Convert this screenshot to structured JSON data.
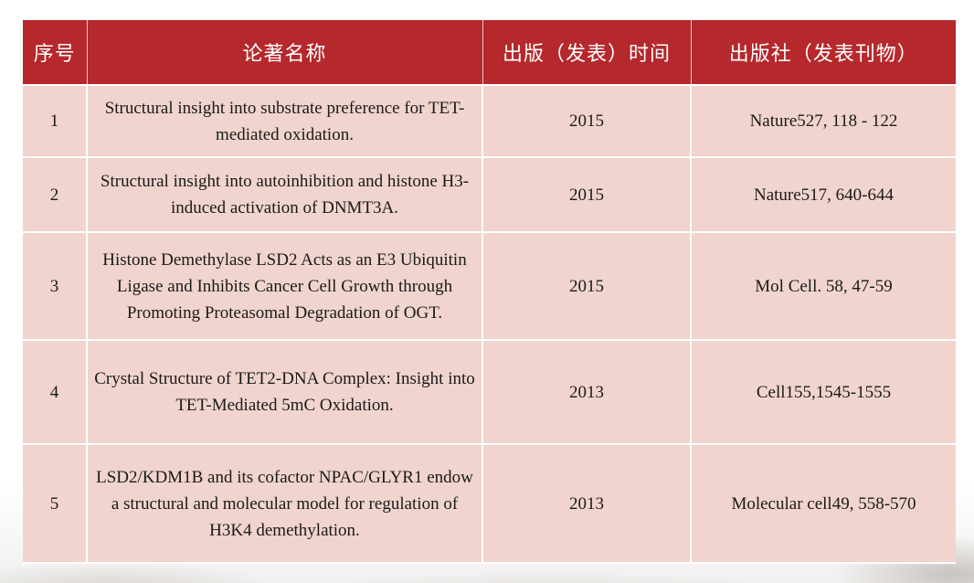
{
  "table": {
    "headers": [
      "序号",
      "论著名称",
      "出版（发表）时间",
      "出版社（发表刊物）"
    ],
    "rows": [
      {
        "num": "1",
        "title": "Structural insight into substrate preference for TET-mediated oxidation.",
        "year": "2015",
        "publisher": "Nature527, 118 - 122"
      },
      {
        "num": "2",
        "title": "Structural insight into autoinhibition and histone H3-induced activation of DNMT3A.",
        "year": "2015",
        "publisher": "Nature517, 640-644"
      },
      {
        "num": "3",
        "title": "Histone Demethylase LSD2 Acts as an E3 Ubiquitin Ligase and Inhibits Cancer Cell Growth through Promoting Proteasomal Degradation of OGT.",
        "year": "2015",
        "publisher": "Mol Cell. 58, 47-59"
      },
      {
        "num": "4",
        "title": "Crystal Structure of TET2-DNA Complex: Insight into TET-Mediated 5mC Oxidation.",
        "year": "2013",
        "publisher": "Cell155,1545-1555"
      },
      {
        "num": "5",
        "title": "LSD2/KDM1B and its cofactor NPAC/GLYR1 endow a structural and molecular model for regulation of H3K4 demethylation.",
        "year": "2013",
        "publisher": "Molecular cell49, 558-570"
      }
    ]
  }
}
